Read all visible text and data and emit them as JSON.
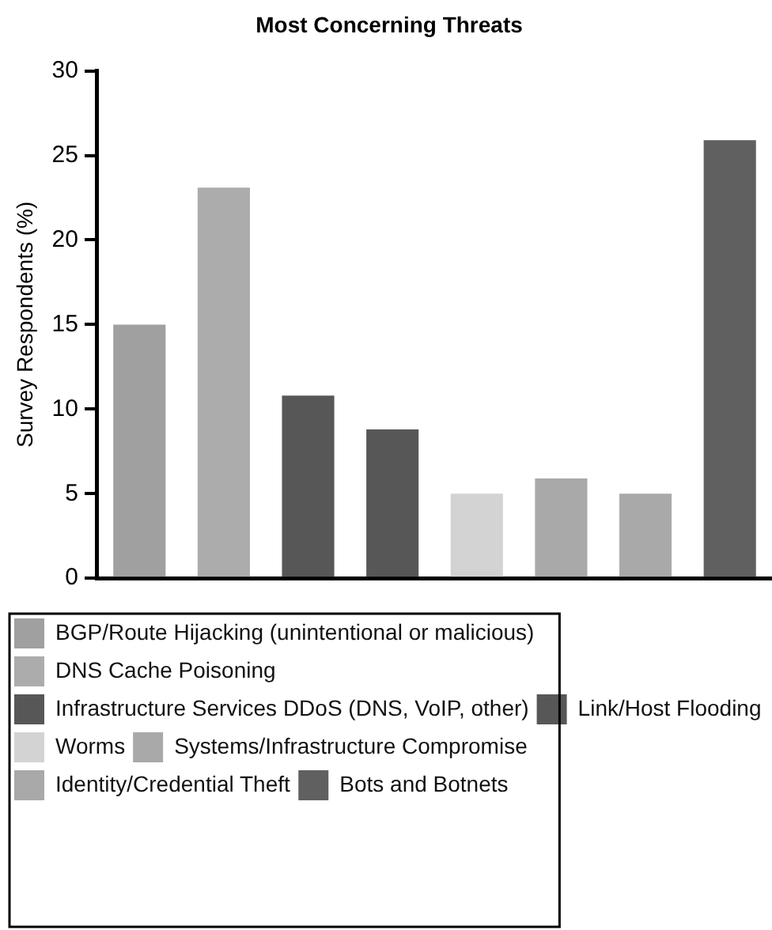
{
  "chart_data": {
    "type": "bar",
    "title": "Most Concerning Threats",
    "ylabel": "Survey Respondents (%)",
    "categories": [
      null,
      null,
      null,
      null,
      null,
      null,
      null,
      null
    ],
    "series": [
      {
        "name": "BGP/Route Hijacking (unintentional or malicious)",
        "color": "#a0a0a0",
        "values": [
          15,
          null,
          null,
          null,
          null,
          null,
          null,
          null
        ]
      },
      {
        "name": "DNS Cache Poisoning",
        "color": "#acacac",
        "values": [
          null,
          23.1,
          null,
          null,
          null,
          null,
          null,
          null
        ]
      },
      {
        "name": "Infrastructure Services DDoS (DNS, VoIP, other)",
        "color": "#575757",
        "values": [
          null,
          null,
          10.8,
          null,
          null,
          null,
          null,
          null
        ]
      },
      {
        "name": "Link/Host Flooding",
        "color": "#575757",
        "values": [
          null,
          null,
          null,
          8.8,
          null,
          null,
          null,
          null
        ]
      },
      {
        "name": "Worms",
        "color": "#d3d3d3",
        "values": [
          null,
          null,
          null,
          null,
          5,
          null,
          null,
          null
        ]
      },
      {
        "name": "Systems/Infrastructure Compromise",
        "color": "#a9a9a9",
        "values": [
          null,
          null,
          null,
          null,
          null,
          5.9,
          null,
          null
        ]
      },
      {
        "name": "Identity/Credential Theft",
        "color": "#a9a9a9",
        "values": [
          null,
          null,
          null,
          null,
          null,
          null,
          5,
          null
        ]
      },
      {
        "name": "Bots and Botnets",
        "color": "#606060",
        "values": [
          null,
          null,
          null,
          null,
          null,
          null,
          null,
          25.9
        ]
      }
    ],
    "ylim": [
      0,
      30
    ],
    "yticks": [
      0,
      5,
      10,
      15,
      20,
      25,
      30
    ],
    "grid": false,
    "legend": "bottom"
  }
}
